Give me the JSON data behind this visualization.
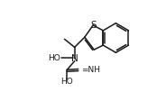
{
  "bg_color": "#ffffff",
  "line_color": "#1a1a1a",
  "line_width": 1.1,
  "font_size": 6.5,
  "figsize": [
    1.84,
    1.23
  ],
  "dpi": 100,
  "xlim": [
    0,
    9.2
  ],
  "ylim": [
    0,
    6.0
  ]
}
